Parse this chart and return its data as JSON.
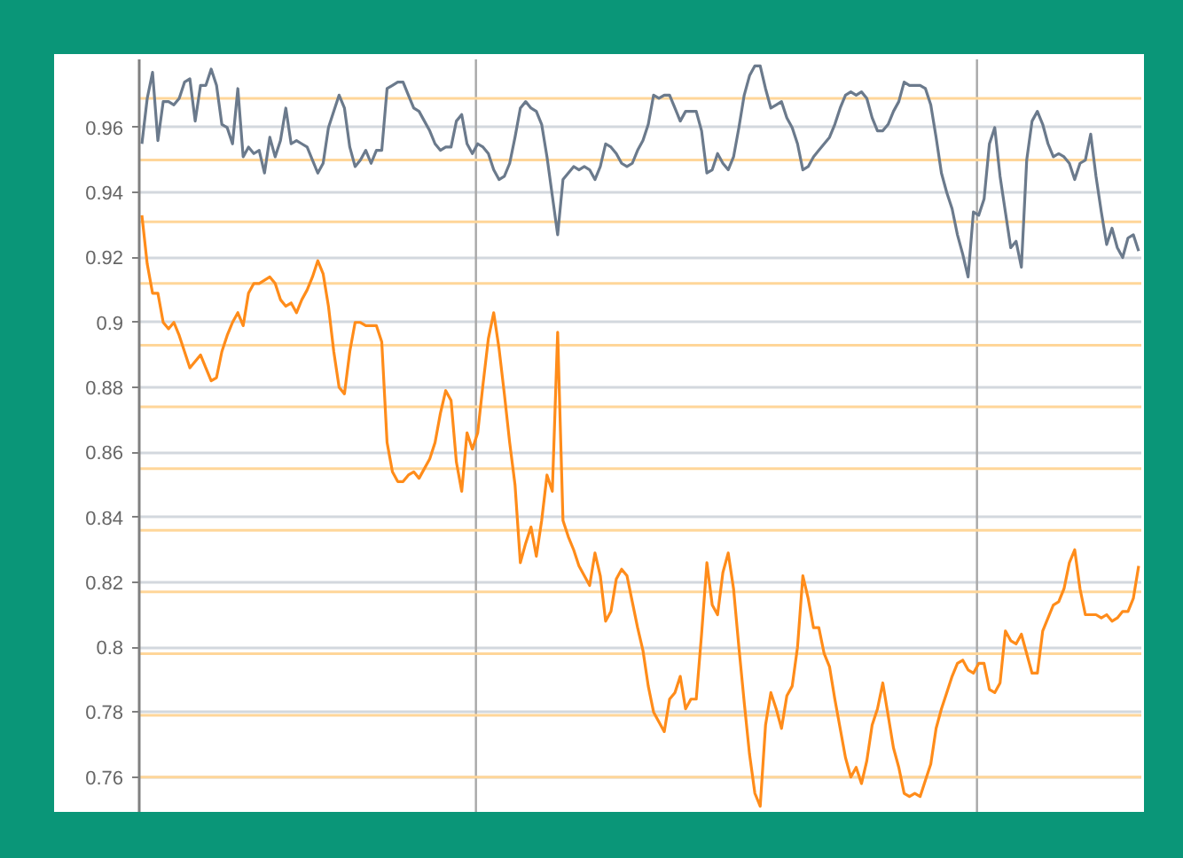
{
  "chart_data": {
    "type": "line",
    "categories": [
      null,
      null,
      null,
      null,
      null,
      null,
      null,
      null,
      null,
      null,
      null,
      null,
      null,
      null,
      null,
      null,
      null,
      null,
      null,
      null,
      null,
      null,
      null,
      null,
      null,
      null,
      null,
      null,
      null,
      null,
      null,
      null,
      null,
      null,
      null,
      null,
      null,
      null,
      null,
      null,
      null,
      null,
      null,
      null,
      null,
      null,
      null,
      null,
      null,
      null,
      null,
      null,
      null,
      null,
      null,
      null,
      null,
      null,
      null,
      null,
      null,
      null,
      null,
      null,
      null,
      null,
      null,
      null,
      null,
      null,
      null,
      null,
      null,
      null,
      null,
      null,
      null,
      null,
      null,
      null,
      null,
      null,
      null,
      null,
      null,
      null,
      null,
      null,
      null,
      null,
      null,
      null,
      null,
      null,
      null,
      null,
      null,
      null,
      null,
      null,
      null,
      null,
      null,
      null,
      null,
      null,
      null,
      null,
      null,
      null,
      null,
      null,
      null,
      null,
      null,
      null,
      null,
      null,
      null,
      null,
      null,
      null,
      null,
      null,
      null,
      null,
      null,
      null,
      null,
      null,
      null,
      null,
      null,
      null,
      null,
      null,
      null,
      null,
      null,
      null,
      null,
      null,
      null,
      null,
      null,
      null,
      null,
      null,
      null,
      null,
      null,
      null,
      null,
      null,
      null,
      null,
      null,
      null,
      null,
      null,
      null,
      null,
      null,
      null,
      null,
      null,
      null,
      null,
      null,
      null,
      null,
      null,
      null,
      null,
      null,
      null,
      null,
      null,
      null,
      null,
      null,
      null,
      null,
      null,
      null,
      null,
      null,
      null
    ],
    "ylim": [
      0.749,
      0.981
    ],
    "yticks": [
      0.76,
      0.78,
      0.8,
      0.82,
      0.84,
      0.86,
      0.88,
      0.9,
      0.92,
      0.94,
      0.96
    ],
    "grid": "y",
    "tick_labels": "y",
    "ref_lines": [
      {
        "axis": "y",
        "value": 0.969,
        "color": "#ffd699"
      },
      {
        "axis": "y",
        "value": 0.95,
        "color": "#ffd699"
      },
      {
        "axis": "y",
        "value": 0.931,
        "color": "#ffd699"
      },
      {
        "axis": "y",
        "value": 0.912,
        "color": "#ffd699"
      },
      {
        "axis": "y",
        "value": 0.893,
        "color": "#ffd699"
      },
      {
        "axis": "y",
        "value": 0.874,
        "color": "#ffd699"
      },
      {
        "axis": "y",
        "value": 0.855,
        "color": "#ffd699"
      },
      {
        "axis": "y",
        "value": 0.836,
        "color": "#ffd699"
      },
      {
        "axis": "y",
        "value": 0.817,
        "color": "#ffd699"
      },
      {
        "axis": "y",
        "value": 0.798,
        "color": "#ffd699"
      },
      {
        "axis": "y",
        "value": 0.779,
        "color": "#ffd699"
      },
      {
        "axis": "y",
        "value": 0.76,
        "color": "#ffd699"
      }
    ],
    "series": [
      {
        "color": "#6b7a8c",
        "values": [
          0.955,
          0.969,
          0.977,
          0.956,
          0.968,
          0.968,
          0.967,
          0.969,
          0.974,
          0.975,
          0.962,
          0.973,
          0.973,
          0.978,
          0.973,
          0.961,
          0.96,
          0.955,
          0.972,
          0.951,
          0.954,
          0.952,
          0.953,
          0.946,
          0.957,
          0.951,
          0.956,
          0.966,
          0.955,
          0.956,
          0.955,
          0.954,
          0.95,
          0.946,
          0.949,
          0.96,
          0.965,
          0.97,
          0.966,
          0.954,
          0.948,
          0.95,
          0.953,
          0.949,
          0.953,
          0.953,
          0.972,
          0.973,
          0.974,
          0.974,
          0.97,
          0.966,
          0.965,
          0.962,
          0.959,
          0.955,
          0.953,
          0.954,
          0.954,
          0.962,
          0.964,
          0.955,
          0.952,
          0.955,
          0.954,
          0.952,
          0.947,
          0.944,
          0.945,
          0.949,
          0.957,
          0.966,
          0.968,
          0.966,
          0.965,
          0.961,
          0.951,
          0.939,
          0.927,
          0.944,
          0.946,
          0.948,
          0.947,
          0.948,
          0.947,
          0.944,
          0.948,
          0.955,
          0.954,
          0.952,
          0.949,
          0.948,
          0.949,
          0.953,
          0.956,
          0.961,
          0.97,
          0.969,
          0.97,
          0.97,
          0.966,
          0.962,
          0.965,
          0.965,
          0.965,
          0.959,
          0.946,
          0.947,
          0.952,
          0.949,
          0.947,
          0.951,
          0.96,
          0.97,
          0.976,
          0.979,
          0.979,
          0.972,
          0.966,
          0.967,
          0.968,
          0.963,
          0.96,
          0.955,
          0.947,
          0.948,
          0.951,
          0.953,
          0.955,
          0.957,
          0.961,
          0.966,
          0.97,
          0.971,
          0.97,
          0.971,
          0.969,
          0.963,
          0.959,
          0.959,
          0.961,
          0.965,
          0.968,
          0.974,
          0.973,
          0.973,
          0.973,
          0.972,
          0.967,
          0.957,
          0.946,
          0.94,
          0.935,
          0.927,
          0.921,
          0.914,
          0.934,
          0.933,
          0.938,
          0.955,
          0.96,
          0.945,
          0.934,
          0.923,
          0.925,
          0.917,
          0.95,
          0.962,
          0.965,
          0.961,
          0.955,
          0.951,
          0.952,
          0.951,
          0.949,
          0.944,
          0.949,
          0.95,
          0.958,
          0.945,
          0.934,
          0.924,
          0.929,
          0.923,
          0.92,
          0.926,
          0.927,
          0.922
        ]
      },
      {
        "color": "#ff8c1a",
        "values": [
          0.933,
          0.918,
          0.909,
          0.909,
          0.9,
          0.898,
          0.9,
          0.896,
          0.891,
          0.886,
          0.888,
          0.89,
          0.886,
          0.882,
          0.883,
          0.891,
          0.896,
          0.9,
          0.903,
          0.899,
          0.909,
          0.912,
          0.912,
          0.913,
          0.914,
          0.912,
          0.907,
          0.905,
          0.906,
          0.903,
          0.907,
          0.91,
          0.914,
          0.919,
          0.915,
          0.905,
          0.891,
          0.88,
          0.878,
          0.891,
          0.9,
          0.9,
          0.899,
          0.899,
          0.899,
          0.894,
          0.863,
          0.854,
          0.851,
          0.851,
          0.853,
          0.854,
          0.852,
          0.855,
          0.858,
          0.863,
          0.872,
          0.879,
          0.876,
          0.857,
          0.848,
          0.866,
          0.861,
          0.866,
          0.881,
          0.895,
          0.903,
          0.892,
          0.878,
          0.863,
          0.85,
          0.826,
          0.832,
          0.837,
          0.828,
          0.839,
          0.853,
          0.848,
          0.897,
          0.839,
          0.834,
          0.83,
          0.825,
          0.822,
          0.819,
          0.829,
          0.822,
          0.808,
          0.811,
          0.821,
          0.824,
          0.822,
          0.814,
          0.806,
          0.799,
          0.788,
          0.78,
          0.777,
          0.774,
          0.784,
          0.786,
          0.791,
          0.781,
          0.784,
          0.784,
          0.804,
          0.826,
          0.813,
          0.81,
          0.823,
          0.829,
          0.818,
          0.8,
          0.783,
          0.767,
          0.755,
          0.751,
          0.776,
          0.786,
          0.781,
          0.775,
          0.785,
          0.788,
          0.8,
          0.822,
          0.815,
          0.806,
          0.806,
          0.798,
          0.794,
          0.784,
          0.775,
          0.766,
          0.76,
          0.763,
          0.758,
          0.765,
          0.776,
          0.781,
          0.789,
          0.779,
          0.769,
          0.763,
          0.755,
          0.754,
          0.755,
          0.754,
          0.759,
          0.764,
          0.775,
          0.781,
          0.786,
          0.791,
          0.795,
          0.796,
          0.793,
          0.792,
          0.795,
          0.795,
          0.787,
          0.786,
          0.789,
          0.805,
          0.802,
          0.801,
          0.804,
          0.798,
          0.792,
          0.792,
          0.805,
          0.809,
          0.813,
          0.814,
          0.818,
          0.826,
          0.83,
          0.818,
          0.81,
          0.81,
          0.81,
          0.809,
          0.81,
          0.808,
          0.809,
          0.811,
          0.811,
          0.815,
          0.825
        ]
      }
    ]
  }
}
